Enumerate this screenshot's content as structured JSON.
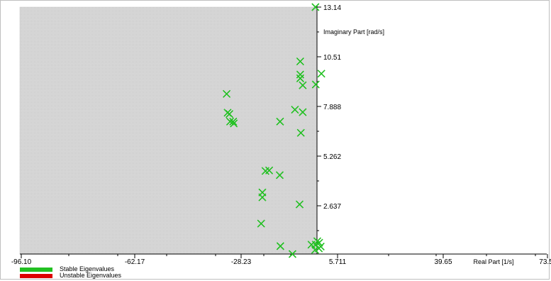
{
  "chart_data": {
    "type": "scatter",
    "x_ticks": [
      "-96.10",
      "-62.17",
      "-28.23",
      "5.711",
      "39.65",
      "73.5"
    ],
    "y_ticks": [
      "13.14",
      "10.51",
      "7.888",
      "5.262",
      "2.637"
    ],
    "xlabel": "Real Part [1/s]",
    "ylabel": "Imaginary Part [rad/s]",
    "xlim": [
      -96.1,
      73.59
    ],
    "ylim": [
      0.0,
      13.14
    ],
    "grid": false,
    "legend_position": "bottom-left",
    "series": [
      {
        "name": "Stable Eigenvalues",
        "color": "#22c022",
        "marker": "x",
        "points": [
          [
            -0.9,
            13.14
          ],
          [
            -5.8,
            10.25
          ],
          [
            -5.8,
            9.55
          ],
          [
            -5.8,
            9.35
          ],
          [
            1.0,
            9.6
          ],
          [
            -5.0,
            8.98
          ],
          [
            -0.8,
            9.02
          ],
          [
            -29.5,
            8.52
          ],
          [
            -7.5,
            7.68
          ],
          [
            -5.0,
            7.55
          ],
          [
            -29.2,
            7.52
          ],
          [
            -28.6,
            7.45
          ],
          [
            -28.4,
            7.05
          ],
          [
            -27.4,
            7.05
          ],
          [
            -27.2,
            6.95
          ],
          [
            -12.3,
            7.05
          ],
          [
            -5.6,
            6.45
          ],
          [
            -17.0,
            4.42
          ],
          [
            -15.8,
            4.45
          ],
          [
            -12.4,
            4.2
          ],
          [
            -18.0,
            3.28
          ],
          [
            -18.0,
            3.02
          ],
          [
            -18.4,
            1.62
          ],
          [
            -6.0,
            2.64
          ],
          [
            -12.2,
            0.42
          ],
          [
            -8.3,
            0.0
          ],
          [
            -2.2,
            0.5
          ],
          [
            -0.8,
            0.5
          ],
          [
            0.3,
            0.6
          ],
          [
            0.8,
            0.4
          ],
          [
            -1.0,
            0.22
          ],
          [
            0.2,
            0.3
          ],
          [
            -0.3,
            0.68
          ]
        ]
      },
      {
        "name": "Unstable Eigenvalues",
        "color": "#dd0000",
        "marker": "x",
        "points": []
      }
    ]
  }
}
